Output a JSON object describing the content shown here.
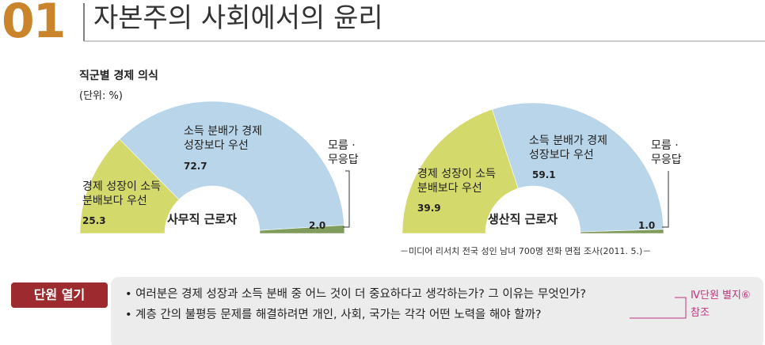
{
  "header": {
    "number": "01",
    "title": "자본주의 사회에서의 윤리"
  },
  "chart_title": "직군별 경제 의식",
  "unit": "(단위: %)",
  "chart_data": [
    {
      "type": "half-donut",
      "center_label": "사무직 근로자",
      "categories": [
        "경제 성장이 소득\n분배보다 우선",
        "소득 분배가 경제\n성장보다 우선",
        "모름 ·\n무응답"
      ],
      "values": [
        25.3,
        72.7,
        2.0
      ],
      "value_labels": [
        "25.3",
        "72.7",
        "2.0"
      ],
      "colors": [
        "#d3d96b",
        "#b9d5ea",
        "#7f9c5c"
      ]
    },
    {
      "type": "half-donut",
      "center_label": "생산직 근로자",
      "categories": [
        "경제 성장이 소득\n분배보다 우선",
        "소득 분배가 경제\n성장보다 우선",
        "모름 ·\n무응답"
      ],
      "values": [
        39.9,
        59.1,
        1.0
      ],
      "value_labels": [
        "39.9",
        "59.1",
        "1.0"
      ],
      "colors": [
        "#d3d96b",
        "#b9d5ea",
        "#7f9c5c"
      ]
    }
  ],
  "source": "－미디어 리서치 전국 성인 남녀 700명 전화 면접 조사(2011. 5.)－",
  "section_label": "단원 열기",
  "questions": [
    "여러분은 경제 성장과 소득 분배 중 어느 것이 더 중요하다고 생각하는가? 그 이유는 무엇인가?",
    "계층 간의 불평등 문제를 해결하려면 개인, 사회, 국가는 각각 어떤 노력을 해야 할까?"
  ],
  "side_note": [
    "Ⅳ단원 별지⑥",
    "참조"
  ]
}
